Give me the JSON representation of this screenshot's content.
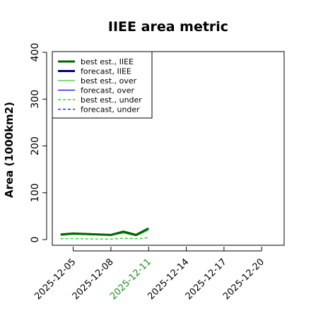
{
  "chart_data": {
    "type": "line",
    "title": "IIEE area metric",
    "ylabel": "Area (1000km2)",
    "xlabel": "",
    "ylim": [
      0,
      420
    ],
    "y_ticks": [
      0,
      100,
      200,
      300,
      400
    ],
    "x_ticks": [
      "2025-12-05",
      "2025-12-08",
      "2025-12-11",
      "2025-12-14",
      "2025-12-17",
      "2025-12-20"
    ],
    "x_range": [
      "2025-12-03",
      "2025-12-21"
    ],
    "highlighted_x_tick": "2025-12-11",
    "highlight_color": "#228b22",
    "grid": false,
    "legend_position": "top-left",
    "series": [
      {
        "name": "best est., IIEE",
        "color": "#006400",
        "style": "solid",
        "width": "thick",
        "points": [
          [
            "2025-12-04",
            11
          ],
          [
            "2025-12-05",
            13
          ],
          [
            "2025-12-08",
            10
          ],
          [
            "2025-12-09",
            17
          ],
          [
            "2025-12-10",
            10
          ],
          [
            "2025-12-11",
            24
          ]
        ]
      },
      {
        "name": "forecast, IIEE",
        "color": "#00008b",
        "style": "solid",
        "width": "thick",
        "points": []
      },
      {
        "name": "best est., over",
        "color": "#32cd32",
        "style": "solid",
        "width": "thin",
        "points": [
          [
            "2025-12-04",
            9
          ],
          [
            "2025-12-05",
            11
          ],
          [
            "2025-12-08",
            9
          ],
          [
            "2025-12-09",
            14
          ],
          [
            "2025-12-10",
            8
          ],
          [
            "2025-12-11",
            20
          ]
        ]
      },
      {
        "name": "forecast, over",
        "color": "#0000ff",
        "style": "solid",
        "width": "thin",
        "points": []
      },
      {
        "name": "best est., under",
        "color": "#00cc00",
        "style": "dashed",
        "width": "thin",
        "points": [
          [
            "2025-12-04",
            2
          ],
          [
            "2025-12-05",
            2
          ],
          [
            "2025-12-08",
            1
          ],
          [
            "2025-12-09",
            3
          ],
          [
            "2025-12-10",
            2
          ],
          [
            "2025-12-11",
            4
          ]
        ]
      },
      {
        "name": "forecast, under",
        "color": "#0000ff",
        "style": "dashed",
        "width": "thin",
        "points": []
      }
    ]
  }
}
